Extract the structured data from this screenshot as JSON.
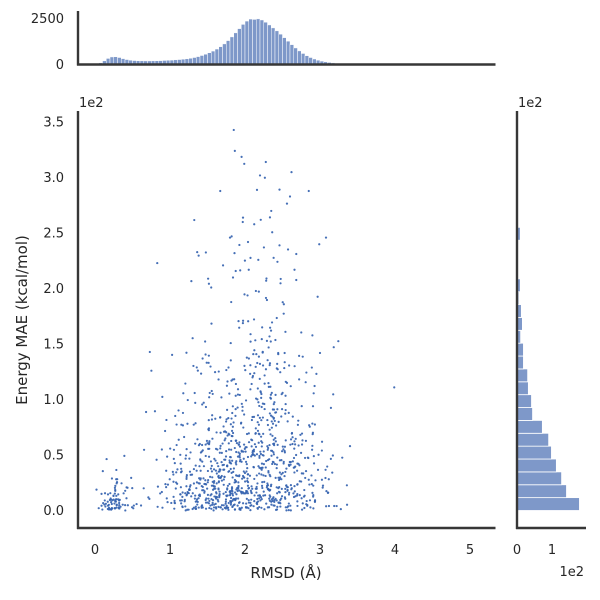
{
  "figure": {
    "kind": "seaborn-style jointplot",
    "background": "#ffffff",
    "colors": {
      "bar_fill": "#7e98c9",
      "bar_edge": "#ffffff",
      "dot": "#3563b0",
      "spine": "#373737",
      "text": "#262626"
    }
  },
  "chart_data": {
    "type": "scatter",
    "title": "",
    "xlabel": "RMSD (Å)",
    "ylabel": "Energy MAE (kcal/mol)",
    "x_tick_labels": [
      "0",
      "1",
      "2",
      "3",
      "4",
      "5"
    ],
    "x_tick_values": [
      0,
      1,
      2,
      3,
      4,
      5
    ],
    "y_tick_labels": [
      "0.0",
      "0.5",
      "1.0",
      "1.5",
      "2.0",
      "2.5",
      "3.0",
      "3.5"
    ],
    "y_tick_values": [
      0,
      50,
      100,
      150,
      200,
      250,
      300,
      350
    ],
    "y_offset_label": "1e2",
    "xlim": [
      -0.27,
      5.33
    ],
    "ylim": [
      -16,
      362
    ],
    "grid": false,
    "legend": null,
    "n_points_estimate": 1176,
    "scatter_outliers": [
      [
        1.85,
        343
      ],
      [
        2.2,
        302
      ],
      [
        2.62,
        305
      ],
      [
        1.67,
        288
      ],
      [
        2.16,
        289
      ],
      [
        2.6,
        283
      ],
      [
        2.85,
        288
      ],
      [
        1.97,
        260
      ],
      [
        2.21,
        262
      ],
      [
        2.35,
        270
      ],
      [
        1.8,
        246
      ],
      [
        2.04,
        242
      ],
      [
        2.46,
        239
      ],
      [
        3.08,
        246
      ],
      [
        2.99,
        240
      ],
      [
        1.86,
        232
      ],
      [
        0.83,
        223
      ],
      [
        2.05,
        217
      ],
      [
        2.66,
        217
      ],
      [
        1.84,
        210
      ],
      [
        3.99,
        111
      ],
      [
        3.4,
        58
      ],
      [
        3.0,
        142
      ]
    ],
    "scatter_generator": {
      "seed": 20240613,
      "clump": {
        "n": 80,
        "x_mean": 0.26,
        "x_sd": 0.12,
        "x_min": 0.02,
        "x_max": 0.8,
        "y_exp_scale": 12,
        "y_max": 65
      },
      "bulk": {
        "n": 1075,
        "x_mean": 2.03,
        "x_sd": 0.54,
        "x_min": 0.05,
        "x_max": 3.42,
        "y_scale_base": 42,
        "y_scale_peak": 26,
        "y_peak_x": 2.3,
        "y_peak_var": 0.4,
        "y_scale_lowx": 18,
        "lowx_cut": 0.55,
        "y_max": 325
      }
    },
    "top_marginal": {
      "type": "bar",
      "role": "x marginal histogram",
      "y_tick_labels": [
        "0",
        "2500"
      ],
      "y_tick_values": [
        0,
        2500
      ],
      "ylim": [
        0,
        2800
      ],
      "bin_start": 0.0,
      "bin_width": 0.05,
      "counts": [
        20,
        90,
        200,
        330,
        410,
        420,
        380,
        320,
        270,
        235,
        215,
        205,
        200,
        195,
        195,
        200,
        205,
        210,
        220,
        230,
        240,
        255,
        270,
        290,
        310,
        340,
        380,
        430,
        490,
        560,
        640,
        730,
        840,
        970,
        1120,
        1300,
        1500,
        1720,
        1950,
        2180,
        2360,
        2470,
        2450,
        2480,
        2420,
        2300,
        2150,
        1990,
        1830,
        1650,
        1460,
        1270,
        1080,
        900,
        740,
        600,
        480,
        380,
        300,
        235,
        185,
        145,
        112,
        86,
        65,
        50,
        38,
        28,
        21,
        16,
        12,
        9,
        6,
        4,
        3,
        2,
        1,
        1
      ]
    },
    "right_marginal": {
      "type": "bar",
      "role": "y marginal histogram",
      "x_tick_labels": [
        "0",
        "1"
      ],
      "x_tick_values": [
        0,
        100
      ],
      "x_offset_label": "1e2",
      "y_offset_label": "1e2",
      "xlim": [
        0,
        197
      ],
      "bin_start": 0.0,
      "bin_width": 11.6,
      "counts": [
        177,
        140,
        126,
        111,
        97,
        89,
        71,
        43,
        40,
        31,
        29,
        17,
        17,
        9,
        14,
        11,
        4,
        8,
        2,
        1,
        1,
        8,
        1,
        1,
        2,
        2,
        1,
        0,
        1,
        1
      ]
    }
  }
}
